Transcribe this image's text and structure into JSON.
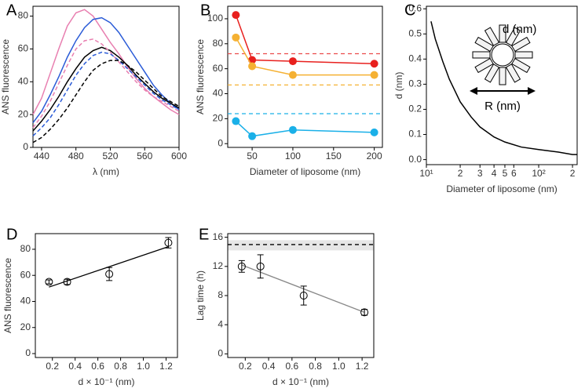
{
  "chart_data": [
    {
      "type": "line",
      "panel": "A",
      "xlabel": "λ (nm)",
      "ylabel": "ANS fluorescence",
      "x": [
        430,
        440,
        450,
        460,
        470,
        480,
        490,
        500,
        510,
        520,
        530,
        540,
        550,
        560,
        570,
        580,
        590,
        600
      ],
      "series": [
        {
          "color": "#e87fb0",
          "dash": false,
          "values": [
            20,
            30,
            45,
            60,
            74,
            82,
            84,
            80,
            72,
            64,
            57,
            49,
            42,
            36,
            31,
            27,
            23,
            20
          ]
        },
        {
          "color": "#2a5bd7",
          "dash": false,
          "values": [
            15,
            22,
            32,
            43,
            55,
            65,
            73,
            78,
            79,
            76,
            70,
            62,
            54,
            46,
            38,
            32,
            27,
            23
          ]
        },
        {
          "color": "#000000",
          "dash": false,
          "values": [
            10,
            16,
            23,
            31,
            40,
            48,
            55,
            59,
            61,
            59,
            55,
            50,
            44,
            39,
            34,
            30,
            27,
            24
          ]
        },
        {
          "color": "#e87fb0",
          "dash": true,
          "values": [
            12,
            19,
            28,
            39,
            50,
            60,
            65,
            66,
            63,
            58,
            52,
            46,
            40,
            35,
            31,
            28,
            25,
            22
          ]
        },
        {
          "color": "#2a5bd7",
          "dash": true,
          "values": [
            7,
            12,
            18,
            26,
            35,
            44,
            51,
            56,
            58,
            57,
            53,
            48,
            43,
            38,
            33,
            29,
            26,
            23
          ]
        },
        {
          "color": "#000000",
          "dash": true,
          "values": [
            3,
            6,
            11,
            17,
            24,
            32,
            40,
            47,
            51,
            53,
            53,
            50,
            46,
            41,
            36,
            31,
            28,
            25
          ]
        }
      ],
      "xlim": [
        430,
        600
      ],
      "xticks": [
        440,
        480,
        520,
        560,
        600
      ],
      "ylim": [
        0,
        86
      ],
      "yticks": [
        0,
        20,
        40,
        60,
        80
      ]
    },
    {
      "type": "line",
      "panel": "B",
      "markers": true,
      "xlabel": "Diameter of liposome (nm)",
      "ylabel": "ANS fluorescence",
      "x": [
        30,
        50,
        100,
        200
      ],
      "series": [
        {
          "color": "#e8201e",
          "values": [
            103,
            67,
            66,
            64
          ]
        },
        {
          "color": "#f5b133",
          "values": [
            85,
            62,
            55,
            55
          ]
        },
        {
          "color": "#1ab0e8",
          "values": [
            18,
            6,
            11,
            9
          ]
        }
      ],
      "reference_lines": [
        {
          "value": 72,
          "color": "#ec4a4a"
        },
        {
          "value": 47,
          "color": "#f5b133"
        },
        {
          "value": 24,
          "color": "#1ab0e8"
        }
      ],
      "xlim": [
        20,
        210
      ],
      "xticks": [
        50,
        100,
        150,
        200
      ],
      "ylim": [
        -3,
        110
      ],
      "yticks": [
        0,
        20,
        40,
        60,
        80,
        100
      ]
    },
    {
      "type": "line",
      "panel": "C",
      "xscale": "log",
      "xlabel": "Diameter of liposome (nm)",
      "ylabel": "d (nm)",
      "x": [
        11,
        12,
        14,
        16,
        20,
        25,
        30,
        40,
        50,
        70,
        100,
        150,
        200,
        220
      ],
      "series": [
        {
          "color": "#000000",
          "values": [
            0.55,
            0.48,
            0.39,
            0.32,
            0.23,
            0.17,
            0.13,
            0.09,
            0.07,
            0.05,
            0.04,
            0.03,
            0.02,
            0.02
          ]
        }
      ],
      "annotations": [
        "d (nm)",
        "R (nm)"
      ],
      "xlim": [
        10,
        220
      ],
      "xticks": [
        {
          "value": 10,
          "label": "10¹"
        },
        {
          "value": 20,
          "label": "2"
        },
        {
          "value": 30,
          "label": "3"
        },
        {
          "value": 40,
          "label": "4"
        },
        {
          "value": 50,
          "label": "5"
        },
        {
          "value": 60,
          "label": "6"
        },
        {
          "value": 100,
          "label": "10²"
        },
        {
          "value": 200,
          "label": "2"
        }
      ],
      "ylim": [
        -0.02,
        0.61
      ],
      "yticks": [
        {
          "value": 0,
          "label": "0.0"
        },
        0.1,
        0.2,
        0.3,
        0.4,
        0.5,
        0.6
      ]
    },
    {
      "type": "scatter",
      "panel": "D",
      "xlabel": "d × 10⁻¹ (nm)",
      "ylabel": "ANS fluorescence",
      "x": [
        0.17,
        0.33,
        0.7,
        1.22
      ],
      "values": [
        55,
        55,
        61,
        85
      ],
      "errors": [
        1.5,
        2,
        5,
        4
      ],
      "fit": {
        "x": [
          0.17,
          1.22
        ],
        "y": [
          51,
          82
        ]
      },
      "fit_color": "#000000",
      "xlim": [
        0.05,
        1.3
      ],
      "xticks": [
        0.2,
        0.4,
        0.6,
        0.8,
        {
          "value": 1,
          "label": "1.0"
        },
        1.2
      ],
      "ylim": [
        -3,
        92
      ],
      "yticks": [
        0,
        20,
        40,
        60,
        80
      ]
    },
    {
      "type": "scatter",
      "panel": "E",
      "xlabel": "d × 10⁻¹ (nm)",
      "ylabel": "Lag time (h)",
      "x": [
        0.17,
        0.33,
        0.7,
        1.22
      ],
      "values": [
        12,
        12,
        8,
        5.7
      ],
      "errors": [
        0.8,
        1.6,
        1.3,
        0.4
      ],
      "fit": {
        "x": [
          0.17,
          1.22
        ],
        "y": [
          12.2,
          5.7
        ]
      },
      "fit_color": "#888888",
      "reference_lines": [
        {
          "value": 15,
          "color": "#000000"
        }
      ],
      "band": [
        14.2,
        15.6
      ],
      "xlim": [
        0.05,
        1.3
      ],
      "xticks": [
        0.2,
        0.4,
        0.6,
        0.8,
        {
          "value": 1,
          "label": "1.0"
        },
        1.2
      ],
      "ylim": [
        -0.5,
        16.5
      ],
      "yticks": [
        0,
        4,
        8,
        12,
        16
      ]
    }
  ]
}
